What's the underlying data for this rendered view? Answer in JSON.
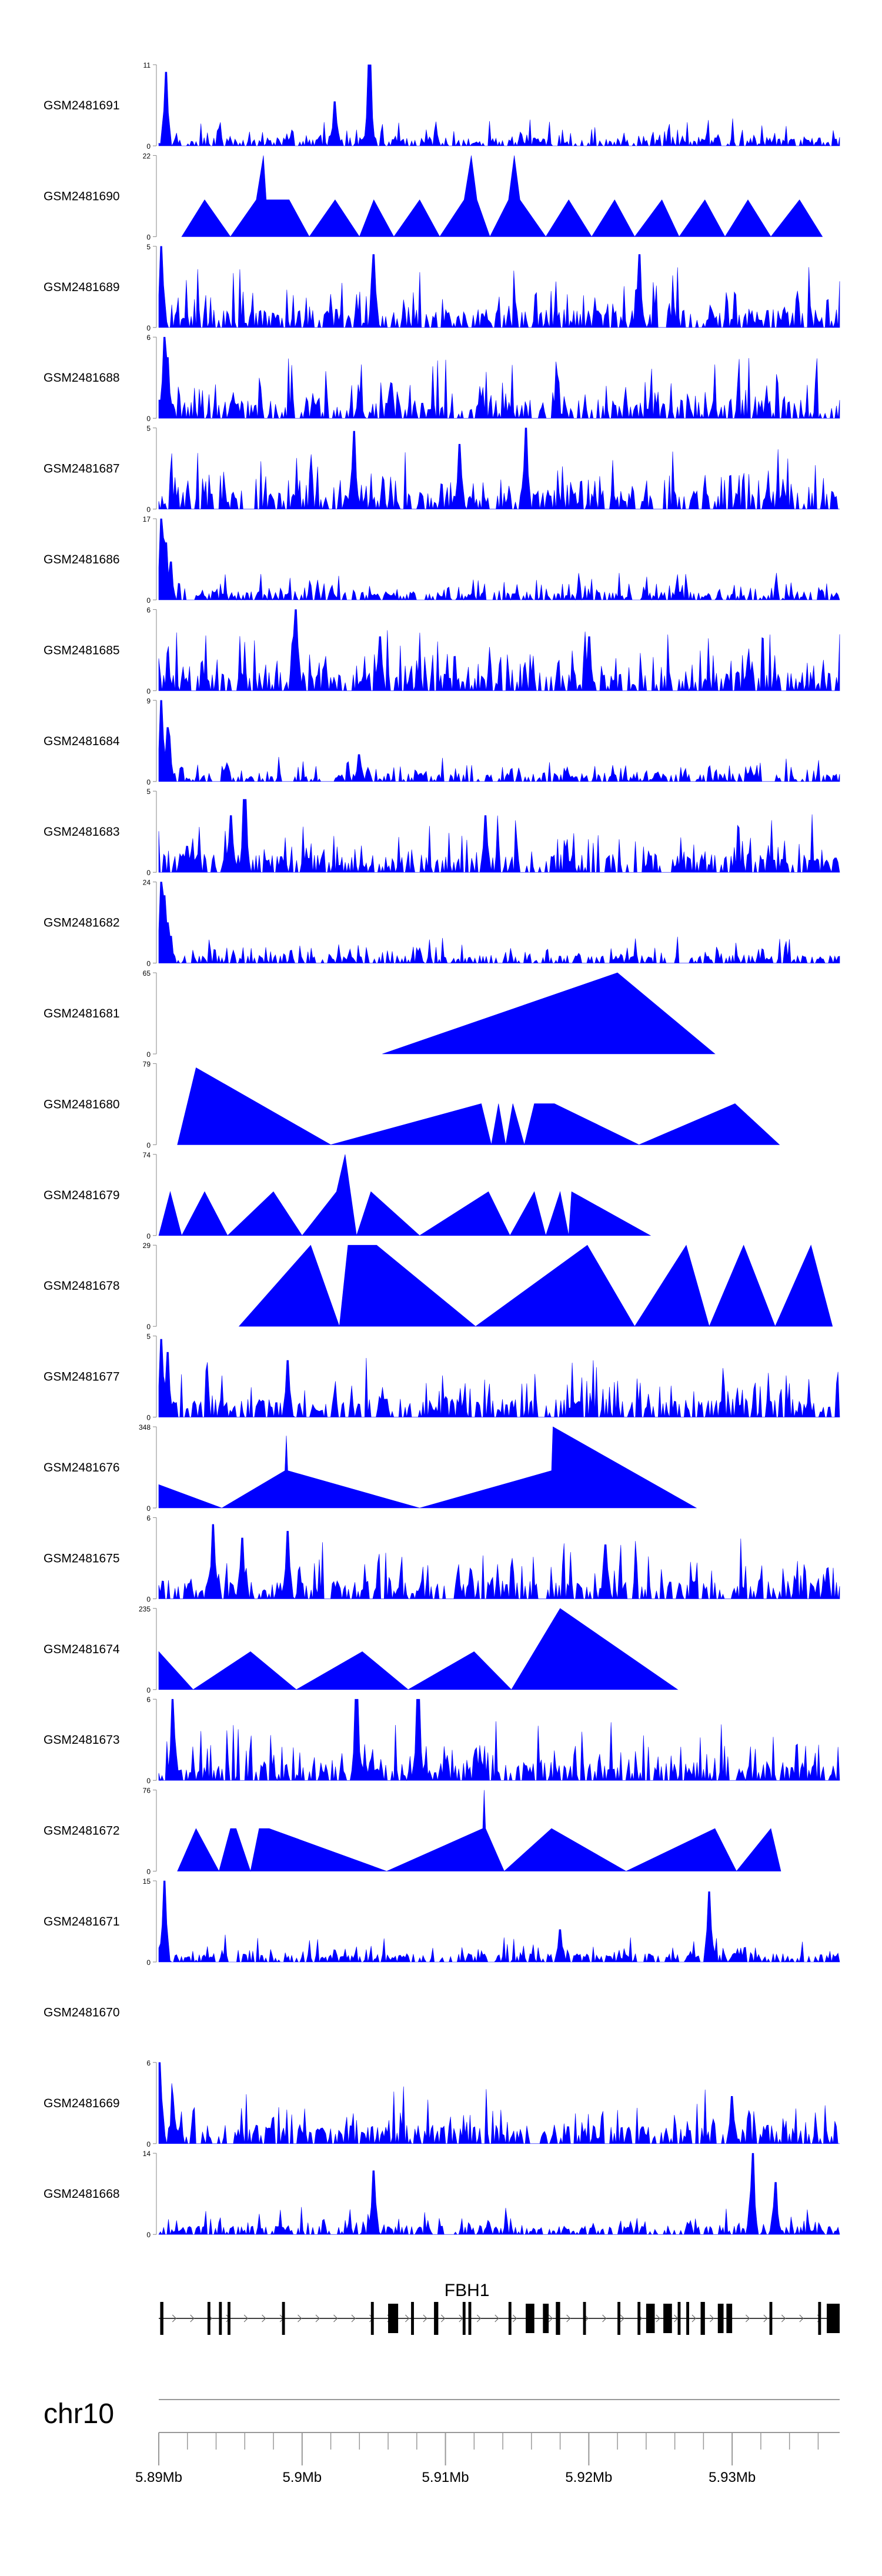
{
  "chart_data": {
    "type": "area",
    "title": "",
    "fill_color": "#0000FF",
    "chromosome": "chr10",
    "x_range_mb": [
      5.89,
      5.9375
    ],
    "x_ticks_mb": [
      5.89,
      5.9,
      5.91,
      5.92,
      5.93
    ],
    "x_tick_labels": [
      "5.89Mb",
      "5.9Mb",
      "5.91Mb",
      "5.92Mb",
      "5.93Mb"
    ],
    "minor_ticks_per_interval": 4,
    "gene": {
      "name": "FBH1",
      "strand": "+",
      "start_mb": 5.89,
      "end_mb": 5.9375,
      "exons": [
        [
          5.8901,
          5.8902
        ],
        [
          5.8902,
          5.8903
        ],
        [
          5.8934,
          5.8936
        ],
        [
          5.8942,
          5.8944
        ],
        [
          5.8948,
          5.895
        ],
        [
          5.8986,
          5.8988
        ],
        [
          5.9048,
          5.905
        ],
        [
          5.906,
          5.9067
        ],
        [
          5.9076,
          5.9078
        ],
        [
          5.9092,
          5.9095
        ],
        [
          5.9112,
          5.9114
        ],
        [
          5.9116,
          5.9118
        ],
        [
          5.9144,
          5.9146
        ],
        [
          5.9156,
          5.9162
        ],
        [
          5.9168,
          5.9172
        ],
        [
          5.9177,
          5.918
        ],
        [
          5.9196,
          5.9198
        ],
        [
          5.922,
          5.9222
        ],
        [
          5.9234,
          5.9236
        ],
        [
          5.924,
          5.9246
        ],
        [
          5.9252,
          5.9258
        ],
        [
          5.9262,
          5.9264
        ],
        [
          5.9268,
          5.927
        ],
        [
          5.9278,
          5.9281
        ],
        [
          5.929,
          5.9294
        ],
        [
          5.9296,
          5.93
        ],
        [
          5.9326,
          5.9328
        ],
        [
          5.936,
          5.9362
        ],
        [
          5.9366,
          5.9375
        ]
      ]
    },
    "tracks": [
      {
        "name": "GSM2481691",
        "ymax": 11,
        "kind": "dense",
        "peaks": [
          [
            5.8905,
            10
          ],
          [
            5.9047,
            11
          ],
          [
            5.9023,
            6
          ]
        ]
      },
      {
        "name": "GSM2481690",
        "ymax": 22,
        "kind": "tri",
        "points": [
          [
            5.8916,
            0
          ],
          [
            5.8932,
            10
          ],
          [
            5.895,
            0
          ],
          [
            5.8968,
            10
          ],
          [
            5.8973,
            22
          ],
          [
            5.8975,
            10
          ],
          [
            5.8991,
            10
          ],
          [
            5.9005,
            0
          ],
          [
            5.9023,
            10
          ],
          [
            5.904,
            0
          ],
          [
            5.905,
            10
          ],
          [
            5.9064,
            0
          ],
          [
            5.9082,
            10
          ],
          [
            5.9096,
            0
          ],
          [
            5.9113,
            10
          ],
          [
            5.9118,
            22
          ],
          [
            5.9122,
            10
          ],
          [
            5.9131,
            0
          ],
          [
            5.9144,
            10
          ],
          [
            5.9148,
            22
          ],
          [
            5.9152,
            10
          ],
          [
            5.917,
            0
          ],
          [
            5.9186,
            10
          ],
          [
            5.9202,
            0
          ],
          [
            5.9218,
            10
          ],
          [
            5.9232,
            0
          ],
          [
            5.9251,
            10
          ],
          [
            5.9263,
            0
          ],
          [
            5.9281,
            10
          ],
          [
            5.9295,
            0
          ],
          [
            5.9311,
            10
          ],
          [
            5.9327,
            0
          ],
          [
            5.9347,
            10
          ],
          [
            5.9363,
            0
          ]
        ]
      },
      {
        "name": "GSM2481689",
        "ymax": 5,
        "kind": "dense",
        "peaks": [
          [
            5.8902,
            5
          ],
          [
            5.905,
            4.5
          ],
          [
            5.9235,
            4.5
          ]
        ]
      },
      {
        "name": "GSM2481688",
        "ymax": 6,
        "kind": "dense",
        "peaks": [
          [
            5.8904,
            6
          ],
          [
            5.8906,
            4.5
          ],
          [
            5.904,
            1.8
          ]
        ]
      },
      {
        "name": "GSM2481687",
        "ymax": 5,
        "kind": "dense",
        "peaks": [
          [
            5.9036,
            4.8
          ],
          [
            5.9156,
            5
          ],
          [
            5.911,
            4
          ]
        ]
      },
      {
        "name": "GSM2481686",
        "ymax": 17,
        "kind": "dense",
        "peaks": [
          [
            5.8902,
            17
          ],
          [
            5.8905,
            12
          ],
          [
            5.8908,
            8
          ],
          [
            5.8903,
            13
          ]
        ]
      },
      {
        "name": "GSM2481685",
        "ymax": 6,
        "kind": "dense",
        "peaks": [
          [
            5.8996,
            6
          ],
          [
            5.9054,
            4
          ],
          [
            5.92,
            4
          ]
        ]
      },
      {
        "name": "GSM2481684",
        "ymax": 9,
        "kind": "dense",
        "peaks": [
          [
            5.8902,
            9
          ],
          [
            5.8906,
            6
          ],
          [
            5.8907,
            5
          ],
          [
            5.904,
            3
          ]
        ]
      },
      {
        "name": "GSM2481683",
        "ymax": 5,
        "kind": "dense",
        "peaks": [
          [
            5.896,
            4.5
          ],
          [
            5.895,
            3.5
          ],
          [
            5.9128,
            3.5
          ]
        ]
      },
      {
        "name": "GSM2481682",
        "ymax": 24,
        "kind": "dense",
        "peaks": [
          [
            5.8902,
            24
          ],
          [
            5.8904,
            20
          ],
          [
            5.8906,
            12
          ],
          [
            5.8908,
            8
          ]
        ]
      },
      {
        "name": "GSM2481681",
        "ymax": 65,
        "kind": "tri",
        "points": [
          [
            5.9056,
            0
          ],
          [
            5.922,
            65
          ],
          [
            5.9288,
            0
          ]
        ]
      },
      {
        "name": "GSM2481680",
        "ymax": 79,
        "kind": "tri",
        "points": [
          [
            5.8913,
            0
          ],
          [
            5.8926,
            75
          ],
          [
            5.902,
            0
          ],
          [
            5.9125,
            40
          ],
          [
            5.9132,
            0
          ],
          [
            5.9137,
            40
          ],
          [
            5.9142,
            0
          ],
          [
            5.9147,
            40
          ],
          [
            5.9155,
            0
          ],
          [
            5.9162,
            40
          ],
          [
            5.9176,
            40
          ],
          [
            5.9235,
            0
          ],
          [
            5.9302,
            40
          ],
          [
            5.9333,
            0
          ]
        ]
      },
      {
        "name": "GSM2481679",
        "ymax": 74,
        "kind": "tri",
        "points": [
          [
            5.89,
            0
          ],
          [
            5.8908,
            40
          ],
          [
            5.8916,
            0
          ],
          [
            5.8932,
            40
          ],
          [
            5.8948,
            0
          ],
          [
            5.898,
            40
          ],
          [
            5.9,
            0
          ],
          [
            5.9024,
            40
          ],
          [
            5.903,
            74
          ],
          [
            5.9038,
            0
          ],
          [
            5.9048,
            40
          ],
          [
            5.9082,
            0
          ],
          [
            5.913,
            40
          ],
          [
            5.9145,
            0
          ],
          [
            5.9162,
            40
          ],
          [
            5.917,
            0
          ],
          [
            5.918,
            40
          ],
          [
            5.9186,
            0
          ],
          [
            5.9188,
            40
          ],
          [
            5.9243,
            0
          ]
        ]
      },
      {
        "name": "GSM2481678",
        "ymax": 29,
        "kind": "tri",
        "points": [
          [
            5.8956,
            0
          ],
          [
            5.9006,
            29
          ],
          [
            5.9026,
            0
          ],
          [
            5.9032,
            29
          ],
          [
            5.9052,
            29
          ],
          [
            5.9121,
            0
          ],
          [
            5.9199,
            29
          ],
          [
            5.9232,
            0
          ],
          [
            5.9268,
            29
          ],
          [
            5.9284,
            0
          ],
          [
            5.9308,
            29
          ],
          [
            5.933,
            0
          ],
          [
            5.9355,
            29
          ],
          [
            5.937,
            0
          ]
        ]
      },
      {
        "name": "GSM2481677",
        "ymax": 5,
        "kind": "dense",
        "peaks": [
          [
            5.8902,
            4.8
          ],
          [
            5.8906,
            4
          ],
          [
            5.899,
            3.5
          ]
        ]
      },
      {
        "name": "GSM2481676",
        "ymax": 348,
        "kind": "tri",
        "points": [
          [
            5.89,
            100
          ],
          [
            5.8944,
            0
          ],
          [
            5.8988,
            160
          ],
          [
            5.8989,
            310
          ],
          [
            5.899,
            160
          ],
          [
            5.9082,
            0
          ],
          [
            5.9174,
            160
          ],
          [
            5.9175,
            348
          ],
          [
            5.9275,
            0
          ]
        ]
      },
      {
        "name": "GSM2481675",
        "ymax": 6,
        "kind": "dense",
        "peaks": [
          [
            5.8938,
            5.5
          ],
          [
            5.8958,
            4.5
          ],
          [
            5.899,
            5
          ],
          [
            5.9212,
            4
          ]
        ]
      },
      {
        "name": "GSM2481674",
        "ymax": 235,
        "kind": "tri",
        "points": [
          [
            5.89,
            110
          ],
          [
            5.8924,
            0
          ],
          [
            5.8964,
            110
          ],
          [
            5.8996,
            0
          ],
          [
            5.9042,
            110
          ],
          [
            5.9074,
            0
          ],
          [
            5.912,
            110
          ],
          [
            5.9146,
            0
          ],
          [
            5.918,
            235
          ],
          [
            5.9262,
            0
          ]
        ]
      },
      {
        "name": "GSM2481673",
        "ymax": 6,
        "kind": "dense",
        "peaks": [
          [
            5.891,
            6
          ],
          [
            5.9081,
            6
          ],
          [
            5.9038,
            6
          ]
        ]
      },
      {
        "name": "GSM2481672",
        "ymax": 76,
        "kind": "tri",
        "points": [
          [
            5.8913,
            0
          ],
          [
            5.8926,
            40
          ],
          [
            5.8942,
            0
          ],
          [
            5.895,
            40
          ],
          [
            5.8954,
            40
          ],
          [
            5.8964,
            0
          ],
          [
            5.897,
            40
          ],
          [
            5.8977,
            40
          ],
          [
            5.9059,
            0
          ],
          [
            5.9126,
            40
          ],
          [
            5.9127,
            76
          ],
          [
            5.9128,
            40
          ],
          [
            5.9141,
            0
          ],
          [
            5.9174,
            40
          ],
          [
            5.9226,
            0
          ],
          [
            5.9288,
            40
          ],
          [
            5.9303,
            0
          ],
          [
            5.9327,
            40
          ],
          [
            5.9334,
            0
          ]
        ]
      },
      {
        "name": "GSM2481671",
        "ymax": 15,
        "kind": "dense",
        "peaks": [
          [
            5.8904,
            15
          ],
          [
            5.9284,
            13
          ],
          [
            5.918,
            6
          ]
        ]
      },
      {
        "name": "GSM2481670",
        "ymax": null,
        "kind": "empty",
        "peaks": []
      },
      {
        "name": "GSM2481669",
        "ymax": 6,
        "kind": "dense",
        "peaks": [
          [
            5.8901,
            6
          ],
          [
            5.891,
            3.5
          ],
          [
            5.93,
            3.5
          ]
        ]
      },
      {
        "name": "GSM2481668",
        "ymax": 14,
        "kind": "dense",
        "peaks": [
          [
            5.905,
            11
          ],
          [
            5.9314,
            14
          ],
          [
            5.933,
            9
          ]
        ]
      }
    ]
  }
}
